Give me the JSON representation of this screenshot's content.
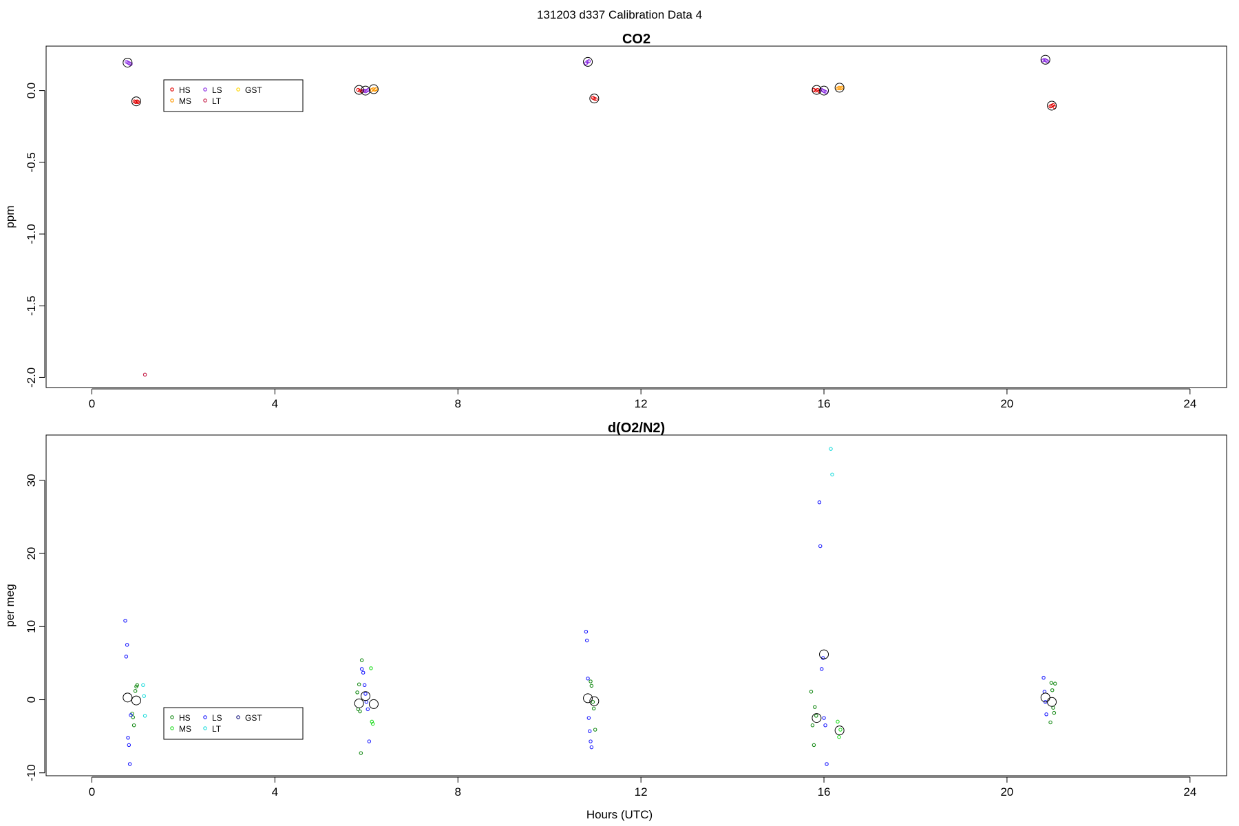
{
  "figure_title": "131203   d337   Calibration Data 4",
  "xlabel": "Hours (UTC)",
  "chart_data": [
    {
      "type": "scatter",
      "title": "CO2",
      "xlabel": "",
      "ylabel": "ppm",
      "xlim": [
        -1,
        24.8
      ],
      "ylim": [
        -2.07,
        0.31
      ],
      "xticks": [
        0,
        4,
        8,
        12,
        16,
        20,
        24
      ],
      "yticks": [
        0.0,
        -0.5,
        -1.0,
        -1.5,
        -2.0
      ],
      "ytick_labels": [
        "0.0",
        "-0.5",
        "-1.0",
        "-1.5",
        "-2.0"
      ],
      "grid": false,
      "legend_position": "top-left",
      "series": [
        {
          "name": "HS",
          "color": "#e00000",
          "points": [
            [
              0.93,
              -0.075
            ],
            [
              0.96,
              -0.08
            ],
            [
              0.99,
              -0.075
            ],
            [
              1.01,
              -0.08
            ],
            [
              5.82,
              0.005
            ],
            [
              5.86,
              0.0
            ],
            [
              5.9,
              -0.005
            ],
            [
              5.94,
              0.0
            ],
            [
              10.95,
              -0.05
            ],
            [
              10.98,
              -0.055
            ],
            [
              11.01,
              -0.06
            ],
            [
              15.78,
              0.005
            ],
            [
              15.82,
              0.0
            ],
            [
              15.86,
              0.005
            ],
            [
              15.9,
              -0.005
            ],
            [
              20.95,
              -0.11
            ],
            [
              20.98,
              -0.105
            ],
            [
              21.01,
              -0.1
            ],
            [
              21.04,
              -0.115
            ]
          ]
        },
        {
          "name": "MS",
          "color": "#ff9900",
          "points": [
            [
              6.12,
              0.005
            ],
            [
              6.15,
              0.01
            ],
            [
              6.18,
              0.005
            ],
            [
              6.21,
              0.01
            ],
            [
              16.3,
              0.015
            ],
            [
              16.33,
              0.02
            ],
            [
              16.36,
              0.015
            ],
            [
              16.39,
              0.02
            ]
          ]
        },
        {
          "name": "LS",
          "color": "#8a2be2",
          "points": [
            [
              0.76,
              0.2
            ],
            [
              0.79,
              0.195
            ],
            [
              0.82,
              0.19
            ],
            [
              0.85,
              0.185
            ],
            [
              5.95,
              0.0
            ],
            [
              5.98,
              -0.005
            ],
            [
              6.01,
              0.0
            ],
            [
              6.04,
              0.005
            ],
            [
              10.8,
              0.19
            ],
            [
              10.83,
              0.2
            ],
            [
              10.86,
              0.205
            ],
            [
              15.95,
              0.005
            ],
            [
              15.98,
              0.0
            ],
            [
              16.01,
              -0.005
            ],
            [
              16.04,
              -0.01
            ],
            [
              20.79,
              0.21
            ],
            [
              20.82,
              0.215
            ],
            [
              20.85,
              0.21
            ],
            [
              20.88,
              0.205
            ]
          ]
        },
        {
          "name": "LT",
          "color": "#c82850",
          "points": [
            [
              1.16,
              -1.98
            ]
          ]
        },
        {
          "name": "GST",
          "color": "#ffd700",
          "points": []
        }
      ],
      "means": [
        [
          0.78,
          0.195
        ],
        [
          0.97,
          -0.075
        ],
        [
          5.84,
          0.005
        ],
        [
          5.98,
          0.0
        ],
        [
          6.16,
          0.01
        ],
        [
          10.84,
          0.2
        ],
        [
          10.98,
          -0.055
        ],
        [
          15.84,
          0.005
        ],
        [
          16.0,
          0.0
        ],
        [
          16.34,
          0.02
        ],
        [
          20.84,
          0.215
        ],
        [
          20.98,
          -0.105
        ]
      ]
    },
    {
      "type": "scatter",
      "title": "d(O2/N2)",
      "xlabel": "Hours (UTC)",
      "ylabel": "per meg",
      "xlim": [
        -1,
        24.8
      ],
      "ylim": [
        -10.4,
        36.2
      ],
      "xticks": [
        0,
        4,
        8,
        12,
        16,
        20,
        24
      ],
      "yticks": [
        -10,
        0,
        10,
        20,
        30
      ],
      "ytick_labels": [
        "-10",
        "0",
        "10",
        "20",
        "30"
      ],
      "grid": false,
      "legend_position": "bottom-left",
      "series": [
        {
          "name": "HS",
          "color": "#1a8c1a",
          "points": [
            [
              0.88,
              -1.9
            ],
            [
              0.9,
              -2.4
            ],
            [
              0.92,
              -3.5
            ],
            [
              0.95,
              1.2
            ],
            [
              0.97,
              1.8
            ],
            [
              0.99,
              2.0
            ],
            [
              5.8,
              1.0
            ],
            [
              5.82,
              -1.3
            ],
            [
              5.84,
              2.1
            ],
            [
              5.86,
              -1.6
            ],
            [
              5.88,
              -7.3
            ],
            [
              5.9,
              5.4
            ],
            [
              10.9,
              2.5
            ],
            [
              10.92,
              1.9
            ],
            [
              10.95,
              -0.3
            ],
            [
              10.97,
              -1.2
            ],
            [
              11.0,
              -4.1
            ],
            [
              15.72,
              1.1
            ],
            [
              15.75,
              -3.5
            ],
            [
              15.78,
              -6.2
            ],
            [
              15.8,
              -1.0
            ],
            [
              15.83,
              -2.2
            ],
            [
              20.95,
              -3.1
            ],
            [
              20.97,
              2.3
            ],
            [
              20.99,
              1.3
            ],
            [
              21.01,
              -1.1
            ],
            [
              21.03,
              -1.8
            ],
            [
              21.05,
              2.2
            ]
          ]
        },
        {
          "name": "MS",
          "color": "#22dd22",
          "points": [
            [
              6.1,
              4.3
            ],
            [
              6.12,
              -3.0
            ],
            [
              6.14,
              -3.3
            ],
            [
              16.3,
              -3.0
            ],
            [
              16.33,
              -5.1
            ],
            [
              16.36,
              -4.1
            ]
          ]
        },
        {
          "name": "LS",
          "color": "#1f1fff",
          "points": [
            [
              0.73,
              10.8
            ],
            [
              0.75,
              5.9
            ],
            [
              0.77,
              7.5
            ],
            [
              0.79,
              -5.2
            ],
            [
              0.81,
              -6.2
            ],
            [
              0.83,
              -8.8
            ],
            [
              0.85,
              -2.1
            ],
            [
              5.9,
              4.2
            ],
            [
              5.93,
              3.7
            ],
            [
              5.96,
              2.0
            ],
            [
              5.98,
              0.8
            ],
            [
              6.0,
              -0.3
            ],
            [
              6.03,
              -1.3
            ],
            [
              6.06,
              -5.7
            ],
            [
              10.8,
              9.3
            ],
            [
              10.82,
              8.1
            ],
            [
              10.84,
              2.9
            ],
            [
              10.86,
              -2.5
            ],
            [
              10.88,
              -4.3
            ],
            [
              10.9,
              -5.7
            ],
            [
              10.92,
              -6.5
            ],
            [
              15.9,
              27.0
            ],
            [
              15.92,
              21.0
            ],
            [
              15.95,
              4.2
            ],
            [
              15.98,
              5.7
            ],
            [
              16.0,
              -2.5
            ],
            [
              16.03,
              -3.5
            ],
            [
              16.06,
              -8.8
            ],
            [
              20.8,
              3.0
            ],
            [
              20.82,
              1.1
            ],
            [
              20.84,
              -0.3
            ],
            [
              20.86,
              -2.0
            ]
          ]
        },
        {
          "name": "LT",
          "color": "#22dddd",
          "points": [
            [
              1.12,
              2.0
            ],
            [
              1.14,
              0.5
            ],
            [
              1.16,
              -2.2
            ],
            [
              16.15,
              34.3
            ],
            [
              16.18,
              30.8
            ]
          ]
        },
        {
          "name": "GST",
          "color": "#1a1a80",
          "points": []
        }
      ],
      "means": [
        [
          0.78,
          0.3
        ],
        [
          0.97,
          -0.1
        ],
        [
          5.84,
          -0.5
        ],
        [
          5.98,
          0.5
        ],
        [
          6.16,
          -0.6
        ],
        [
          10.84,
          0.2
        ],
        [
          10.98,
          -0.2
        ],
        [
          15.84,
          -2.5
        ],
        [
          16.0,
          6.2
        ],
        [
          16.34,
          -4.2
        ],
        [
          20.84,
          0.3
        ],
        [
          20.98,
          -0.3
        ]
      ]
    }
  ]
}
